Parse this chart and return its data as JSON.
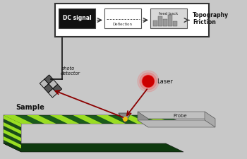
{
  "bg_color": "#c8c8c8",
  "sample_dark": "#1a5c1a",
  "sample_light": "#99dd22",
  "sample_stripe_dark": "#2a7a2a",
  "probe_top": "#b8b8b8",
  "probe_side": "#888888",
  "probe_dark": "#666666",
  "laser_color": "#cc0000",
  "laser_glow": "#ff4444",
  "beam_color": "#8b0000",
  "beam_color2": "#6b0000",
  "det_light": "#cccccc",
  "det_dark": "#444444",
  "box_bg": "#ffffff",
  "box_border": "#333333",
  "dc_bg": "#111111",
  "text_color": "#111111",
  "wire_color": "#111111",
  "label_sample": "Sample",
  "label_probe": "Probe",
  "label_laser": "Laser",
  "label_photo": "photo\ndetector",
  "label_dc": "DC signal",
  "label_deflection": "Deflection",
  "label_feedback": "feed back",
  "label_output": "Topography\nFriction",
  "figw": 3.5,
  "figh": 2.25,
  "dpi": 100
}
